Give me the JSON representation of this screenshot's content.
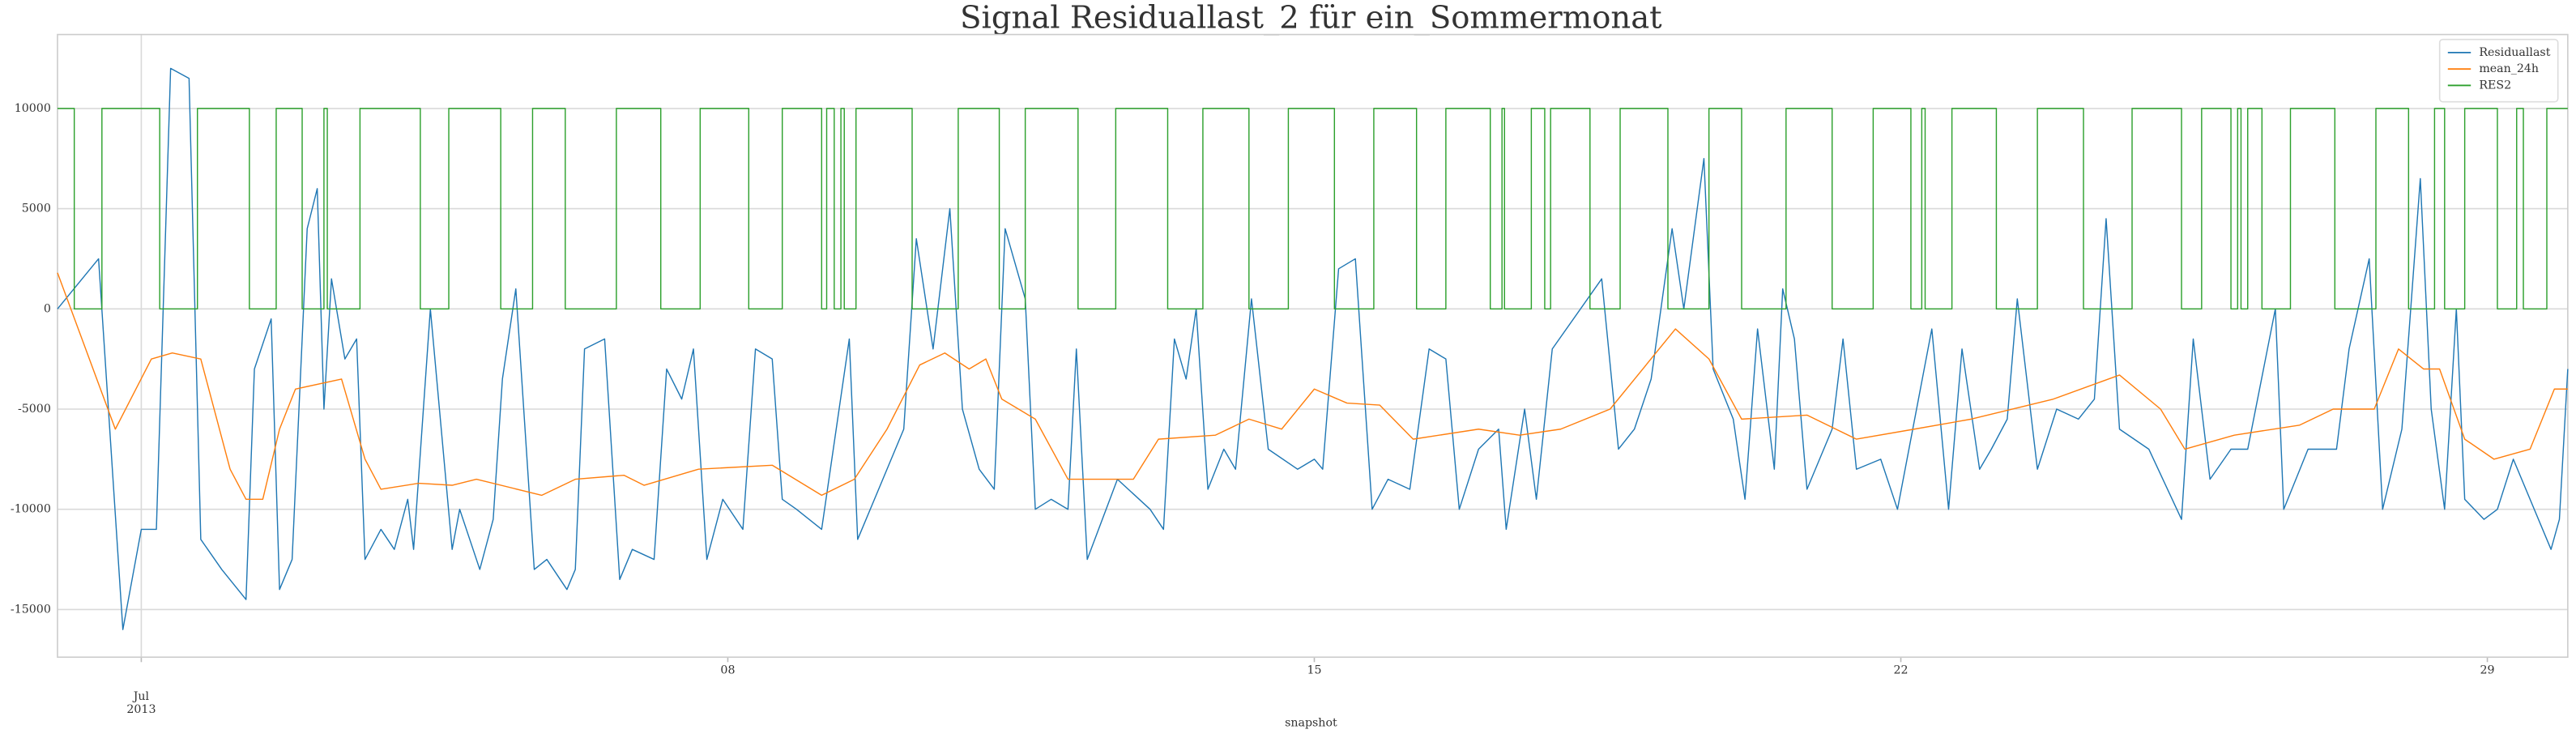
{
  "chart_data": {
    "type": "line",
    "title": "Signal Residuallast_2 für ein_Sommermonat",
    "xlabel": "snapshot",
    "xlim": [
      0,
      29.96
    ],
    "xticks": [
      {
        "value": 1,
        "label": "Jul\n2013"
      },
      {
        "value": 8,
        "label": "08"
      },
      {
        "value": 15,
        "label": "15"
      },
      {
        "value": 22,
        "label": "22"
      },
      {
        "value": 29,
        "label": "29"
      }
    ],
    "ylim": [
      -17377,
      13690
    ],
    "yticks": [
      -15000,
      -10000,
      -5000,
      0,
      5000,
      10000
    ],
    "grid": true,
    "legend": "upper right",
    "series": [
      {
        "name": "Residuallast",
        "color": "#1f77b4",
        "x": [
          0,
          0.49,
          0.78,
          1.0,
          1.18,
          1.35,
          1.57,
          1.71,
          1.96,
          2.25,
          2.35,
          2.55,
          2.65,
          2.8,
          2.98,
          3.1,
          3.18,
          3.27,
          3.43,
          3.57,
          3.67,
          3.86,
          4.02,
          4.18,
          4.25,
          4.45,
          4.71,
          4.8,
          5.04,
          5.2,
          5.31,
          5.47,
          5.69,
          5.84,
          6.08,
          6.18,
          6.29,
          6.53,
          6.71,
          6.86,
          7.12,
          7.27,
          7.45,
          7.59,
          7.75,
          7.94,
          8.18,
          8.33,
          8.53,
          8.65,
          8.82,
          9.12,
          9.45,
          9.55,
          9.8,
          10.1,
          10.25,
          10.45,
          10.65,
          10.8,
          11.0,
          11.18,
          11.31,
          11.55,
          11.67,
          11.86,
          12.06,
          12.16,
          12.29,
          12.65,
          13.04,
          13.2,
          13.33,
          13.47,
          13.59,
          13.73,
          13.92,
          14.06,
          14.25,
          14.45,
          14.8,
          15.0,
          15.1,
          15.29,
          15.49,
          15.69,
          15.88,
          16.14,
          16.37,
          16.57,
          16.73,
          16.96,
          17.2,
          17.29,
          17.51,
          17.65,
          17.84,
          18.43,
          18.63,
          18.82,
          19.02,
          19.27,
          19.41,
          19.65,
          19.76,
          20.0,
          20.14,
          20.29,
          20.49,
          20.59,
          20.73,
          20.88,
          21.18,
          21.31,
          21.47,
          21.76,
          21.96,
          22.37,
          22.57,
          22.73,
          22.94,
          23.08,
          23.27,
          23.39,
          23.63,
          23.86,
          24.12,
          24.31,
          24.45,
          24.61,
          24.96,
          25.35,
          25.49,
          25.69,
          25.94,
          26.14,
          26.47,
          26.57,
          26.86,
          27.2,
          27.35,
          27.59,
          27.75,
          27.98,
          28.2,
          28.33,
          28.49,
          28.63,
          28.73,
          28.96,
          29.12,
          29.31,
          29.76,
          29.86,
          29.96
        ],
        "values": [
          0,
          2500,
          -16000,
          -11000,
          -11000,
          12000,
          11500,
          -11500,
          -13000,
          -14500,
          -3000,
          -500,
          -14000,
          -12500,
          4000,
          6000,
          -5000,
          1500,
          -2500,
          -1500,
          -12500,
          -11000,
          -12000,
          -9500,
          -12000,
          0,
          -12000,
          -10000,
          -13000,
          -10500,
          -3500,
          1000,
          -13000,
          -12500,
          -14000,
          -13000,
          -2000,
          -1500,
          -13500,
          -12000,
          -12500,
          -3000,
          -4500,
          -2000,
          -12500,
          -9500,
          -11000,
          -2000,
          -2500,
          -9500,
          -10000,
          -11000,
          -1500,
          -11500,
          -9000,
          -6000,
          3500,
          -2000,
          5000,
          -5000,
          -8000,
          -9000,
          4000,
          500,
          -10000,
          -9500,
          -10000,
          -2000,
          -12500,
          -8500,
          -10000,
          -11000,
          -1500,
          -3500,
          0,
          -9000,
          -7000,
          -8000,
          500,
          -7000,
          -8000,
          -7500,
          -8000,
          2000,
          2500,
          -10000,
          -8500,
          -9000,
          -2000,
          -2500,
          -10000,
          -7000,
          -6000,
          -11000,
          -5000,
          -9500,
          -2000,
          1500,
          -7000,
          -6000,
          -3500,
          4000,
          0,
          7500,
          -3000,
          -5500,
          -9500,
          -1000,
          -8000,
          1000,
          -1500,
          -9000,
          -6000,
          -1500,
          -8000,
          -7500,
          -10000,
          -1000,
          -10000,
          -2000,
          -8000,
          -7000,
          -5500,
          500,
          -8000,
          -5000,
          -5500,
          -4500,
          4500,
          -6000,
          -7000,
          -10500,
          -1500,
          -8500,
          -7000,
          -7000,
          0,
          -10000,
          -7000,
          -7000,
          -2000,
          2500,
          -10000,
          -6000,
          6500,
          -5000,
          -10000,
          0,
          -9500,
          -10500,
          -10000,
          -7500,
          -12000,
          -10500,
          -3000
        ]
      },
      {
        "name": "mean_24h",
        "color": "#ff7f0e",
        "x": [
          0,
          0.69,
          1.12,
          1.37,
          1.71,
          2.06,
          2.25,
          2.45,
          2.65,
          2.84,
          3.39,
          3.67,
          3.86,
          4.31,
          4.71,
          5.0,
          5.78,
          6.18,
          6.76,
          7.0,
          7.65,
          8.53,
          9.12,
          9.51,
          9.9,
          10.29,
          10.59,
          10.88,
          11.08,
          11.27,
          11.67,
          12.06,
          12.84,
          13.14,
          13.82,
          14.22,
          14.61,
          15.0,
          15.39,
          15.78,
          16.18,
          16.96,
          17.45,
          17.94,
          18.53,
          18.92,
          19.31,
          19.71,
          20.1,
          20.88,
          21.47,
          22.16,
          22.84,
          23.82,
          24.61,
          25.1,
          25.39,
          25.98,
          26.76,
          27.16,
          27.65,
          27.94,
          28.24,
          28.43,
          28.73,
          29.08,
          29.51,
          29.8,
          29.96
        ],
        "values": [
          1800,
          -6000,
          -2500,
          -2200,
          -2500,
          -8000,
          -9500,
          -9500,
          -6000,
          -4000,
          -3500,
          -7500,
          -9000,
          -8700,
          -8800,
          -8500,
          -9300,
          -8500,
          -8300,
          -8800,
          -8000,
          -7800,
          -9300,
          -8500,
          -6000,
          -2800,
          -2200,
          -3000,
          -2500,
          -4500,
          -5500,
          -8500,
          -8500,
          -6500,
          -6300,
          -5500,
          -6000,
          -4000,
          -4700,
          -4800,
          -6500,
          -6000,
          -6300,
          -6000,
          -5000,
          -3000,
          -1000,
          -2500,
          -5500,
          -5300,
          -6500,
          -6000,
          -5500,
          -4500,
          -3300,
          -5000,
          -7000,
          -6300,
          -5800,
          -5000,
          -5000,
          -2000,
          -3000,
          -3000,
          -6500,
          -7500,
          -7000,
          -4000,
          -4000
        ]
      },
      {
        "name": "RES2",
        "color": "#2ca02c",
        "drawstyle": "steps-post",
        "x": [
          0,
          0.2,
          0.53,
          1.22,
          1.67,
          2.29,
          2.61,
          2.92,
          3.18,
          3.22,
          3.61,
          4.33,
          4.67,
          5.29,
          5.67,
          6.06,
          6.67,
          7.2,
          7.67,
          8.25,
          8.65,
          9.12,
          9.18,
          9.27,
          9.35,
          9.39,
          9.53,
          10.2,
          10.75,
          11.24,
          11.55,
          12.18,
          12.63,
          13.25,
          13.67,
          14.22,
          14.69,
          15.24,
          15.71,
          16.22,
          16.57,
          17.1,
          17.24,
          17.27,
          17.59,
          17.75,
          17.82,
          18.29,
          18.65,
          19.22,
          19.71,
          20.1,
          20.63,
          21.18,
          21.67,
          22.12,
          22.25,
          22.29,
          22.61,
          23.14,
          23.63,
          24.18,
          24.76,
          25.35,
          25.59,
          25.94,
          26.02,
          26.06,
          26.14,
          26.31,
          26.65,
          27.18,
          27.67,
          28.06,
          28.37,
          28.49,
          28.73,
          29.12,
          29.35,
          29.43,
          29.71,
          29.96
        ],
        "values": [
          10000,
          0,
          10000,
          0,
          10000,
          0,
          10000,
          0,
          10000,
          0,
          10000,
          0,
          10000,
          0,
          10000,
          0,
          10000,
          0,
          10000,
          0,
          10000,
          0,
          10000,
          0,
          10000,
          0,
          10000,
          0,
          10000,
          0,
          10000,
          0,
          10000,
          0,
          10000,
          0,
          10000,
          0,
          10000,
          0,
          10000,
          0,
          10000,
          0,
          10000,
          0,
          10000,
          0,
          10000,
          0,
          10000,
          0,
          10000,
          0,
          10000,
          0,
          10000,
          0,
          10000,
          0,
          10000,
          0,
          10000,
          0,
          10000,
          0,
          10000,
          0,
          10000,
          0,
          10000,
          0,
          10000,
          0,
          10000,
          0,
          10000,
          0,
          10000,
          0,
          10000,
          10000
        ]
      }
    ]
  }
}
